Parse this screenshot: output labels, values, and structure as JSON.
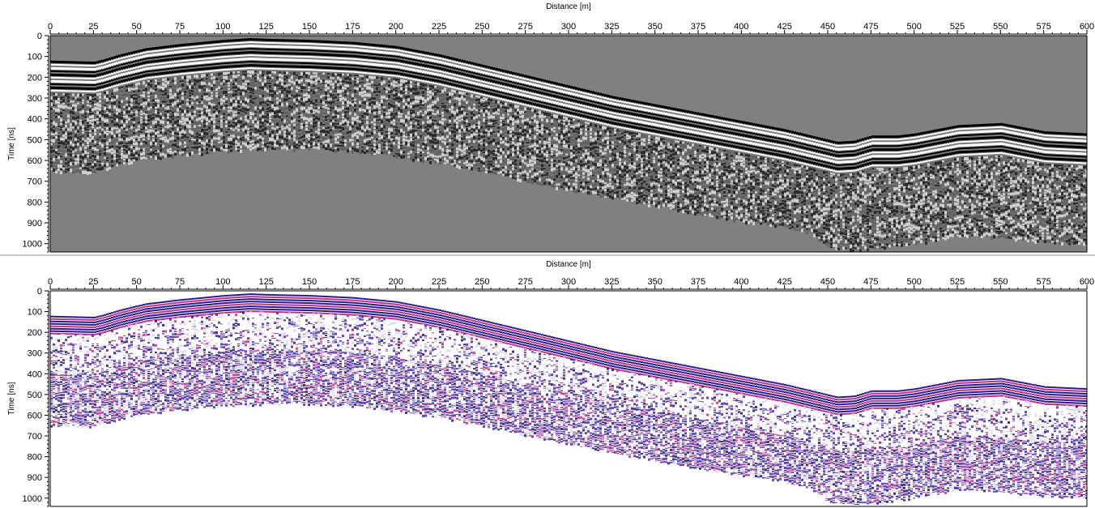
{
  "chart_data": [
    {
      "type": "heatmap",
      "title": "",
      "xlabel": "Distance [m]",
      "ylabel": "Time [ns]",
      "xlim": [
        0,
        600
      ],
      "ylim": [
        1040,
        0
      ],
      "xticks": [
        0,
        25,
        50,
        75,
        100,
        125,
        150,
        175,
        200,
        225,
        250,
        275,
        300,
        325,
        350,
        375,
        400,
        425,
        450,
        475,
        500,
        525,
        550,
        575,
        600
      ],
      "yticks": [
        0,
        100,
        200,
        300,
        400,
        500,
        600,
        700,
        800,
        900,
        1000
      ],
      "colormap": "grayscale",
      "background_color": "#808080",
      "colors": [
        "#000000",
        "#808080",
        "#ffffff"
      ],
      "surface_profile": {
        "x": [
          0,
          25,
          30,
          40,
          55,
          75,
          100,
          115,
          125,
          150,
          175,
          200,
          225,
          250,
          275,
          300,
          325,
          350,
          375,
          400,
          425,
          440,
          455,
          465,
          475,
          490,
          500,
          525,
          550,
          575,
          600
        ],
        "time_ns": [
          120,
          125,
          115,
          90,
          60,
          40,
          20,
          12,
          15,
          20,
          30,
          50,
          90,
          140,
          190,
          240,
          290,
          330,
          370,
          410,
          450,
          480,
          510,
          505,
          480,
          480,
          470,
          430,
          420,
          460,
          470
        ]
      },
      "lower_profile": {
        "x": [
          0,
          25,
          30,
          50,
          75,
          100,
          125,
          150,
          175,
          200,
          225,
          250,
          275,
          300,
          325,
          350,
          375,
          400,
          425,
          440,
          450,
          465,
          480,
          500,
          525,
          550,
          575,
          600
        ],
        "time_ns": [
          650,
          655,
          640,
          600,
          575,
          555,
          545,
          545,
          555,
          580,
          610,
          650,
          700,
          740,
          780,
          820,
          860,
          890,
          920,
          950,
          1020,
          1030,
          1020,
          1000,
          960,
          970,
          990,
          1000
        ]
      }
    },
    {
      "type": "heatmap",
      "title": "",
      "xlabel": "Distance [m]",
      "ylabel": "Time [ns]",
      "xlim": [
        0,
        600
      ],
      "ylim": [
        1040,
        0
      ],
      "xticks": [
        0,
        25,
        50,
        75,
        100,
        125,
        150,
        175,
        200,
        225,
        250,
        275,
        300,
        325,
        350,
        375,
        400,
        425,
        450,
        475,
        500,
        525,
        550,
        575,
        600
      ],
      "yticks": [
        0,
        100,
        200,
        300,
        400,
        500,
        600,
        700,
        800,
        900,
        1000
      ],
      "colormap": "white-blue-magenta",
      "background_color": "#ffffff",
      "colors": [
        "#ffffff",
        "#5a3fb8",
        "#2a1a8f",
        "#c0308a"
      ],
      "surface_profile": {
        "x": [
          0,
          25,
          30,
          40,
          55,
          75,
          100,
          115,
          125,
          150,
          175,
          200,
          225,
          250,
          275,
          300,
          325,
          350,
          375,
          400,
          425,
          440,
          455,
          465,
          475,
          490,
          500,
          525,
          550,
          575,
          600
        ],
        "time_ns": [
          120,
          125,
          115,
          90,
          60,
          40,
          20,
          12,
          15,
          20,
          30,
          50,
          90,
          140,
          190,
          240,
          290,
          330,
          370,
          410,
          450,
          480,
          510,
          505,
          480,
          480,
          470,
          430,
          420,
          460,
          470
        ]
      },
      "lower_profile": {
        "x": [
          0,
          25,
          30,
          50,
          75,
          100,
          125,
          150,
          175,
          200,
          225,
          250,
          275,
          300,
          325,
          350,
          375,
          400,
          425,
          440,
          450,
          465,
          480,
          500,
          525,
          550,
          575,
          600
        ],
        "time_ns": [
          650,
          655,
          640,
          600,
          575,
          555,
          545,
          545,
          555,
          580,
          610,
          650,
          700,
          740,
          780,
          820,
          860,
          890,
          920,
          950,
          1020,
          1030,
          1020,
          1000,
          960,
          970,
          990,
          1000
        ]
      }
    }
  ]
}
